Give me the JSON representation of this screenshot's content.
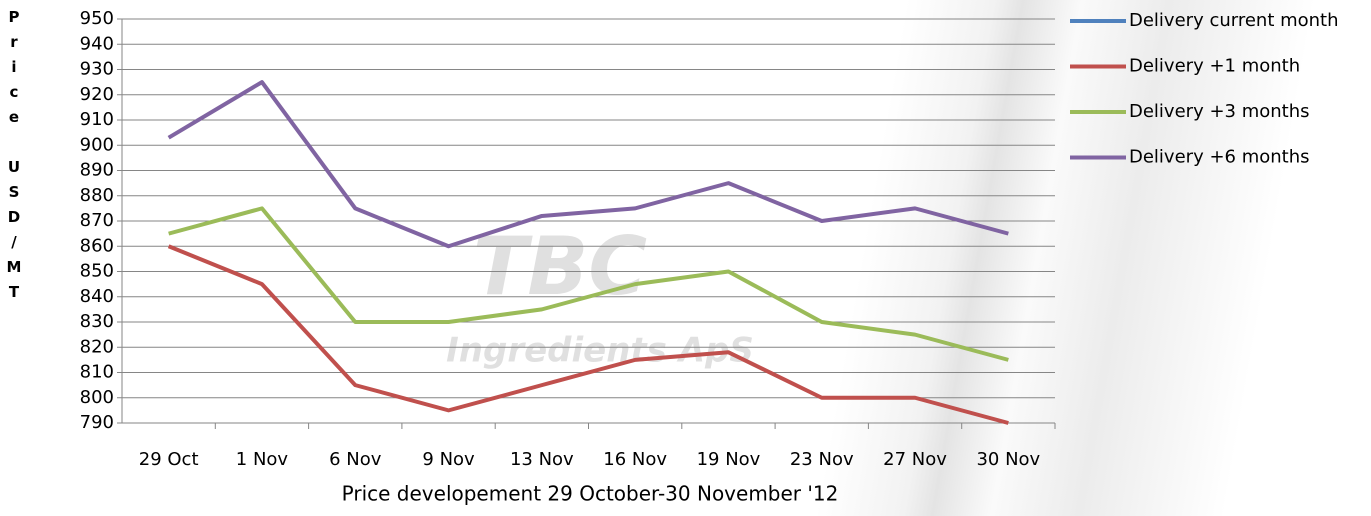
{
  "chart_data": {
    "type": "line",
    "x_label": "Price developement 29 October-30 November '12",
    "y_label": "Price USD/MT",
    "watermark": [
      "TBC",
      "Ingredients ApS"
    ],
    "categories": [
      "29 Oct",
      "1 Nov",
      "6 Nov",
      "9 Nov",
      "13 Nov",
      "16 Nov",
      "19 Nov",
      "23 Nov",
      "27 Nov",
      "30 Nov"
    ],
    "series": [
      {
        "name": "Delivery current month",
        "color": "#4f81bd",
        "values": [
          null,
          null,
          null,
          null,
          null,
          null,
          null,
          null,
          null,
          null
        ]
      },
      {
        "name": "Delivery +1 month",
        "color": "#c0504d",
        "values": [
          860,
          845,
          805,
          795,
          805,
          815,
          818,
          800,
          800,
          790
        ]
      },
      {
        "name": "Delivery +3 months",
        "color": "#9bbb59",
        "values": [
          865,
          875,
          830,
          830,
          835,
          845,
          850,
          830,
          825,
          815
        ]
      },
      {
        "name": "Delivery +6 months",
        "color": "#8064a2",
        "values": [
          903,
          925,
          875,
          860,
          872,
          875,
          885,
          870,
          875,
          865
        ]
      }
    ],
    "ylim": [
      790,
      950
    ],
    "yticks": [
      790,
      800,
      810,
      820,
      830,
      840,
      850,
      860,
      870,
      880,
      890,
      900,
      910,
      920,
      930,
      940,
      950
    ],
    "grid": true,
    "legend": "right"
  }
}
